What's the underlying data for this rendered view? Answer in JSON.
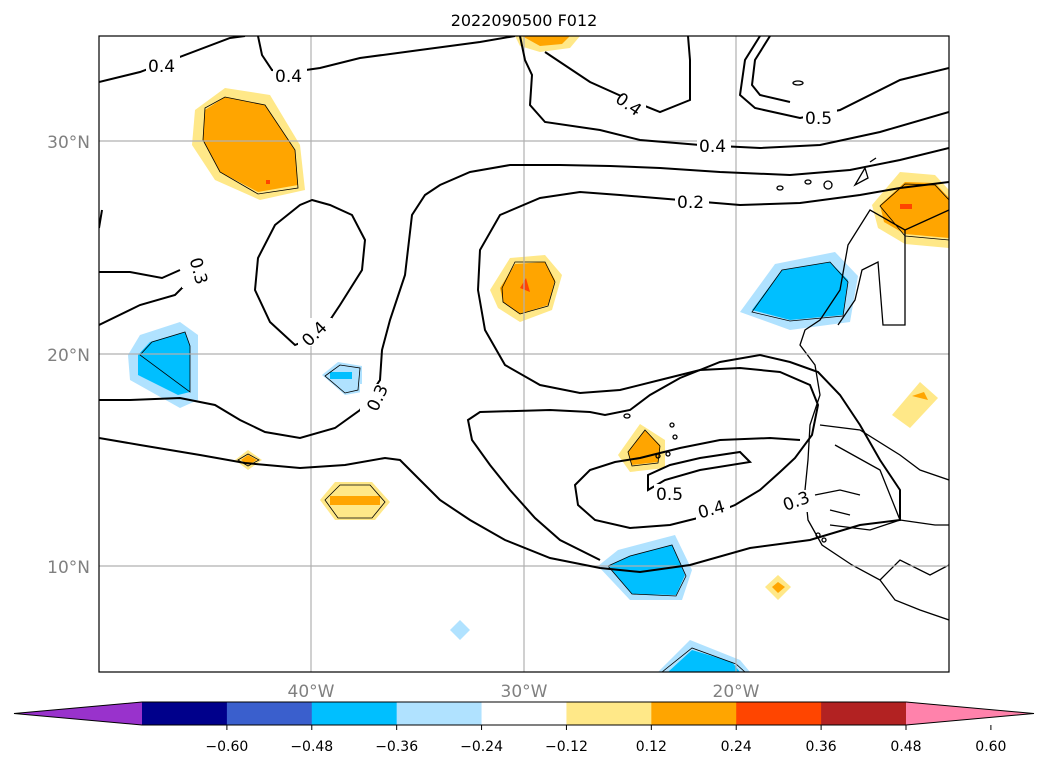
{
  "map": {
    "title": "2022090500 F012",
    "lat_labels": [
      "30°N",
      "20°N",
      "10°N"
    ],
    "lon_labels": [
      "40°W",
      "30°W",
      "20°W"
    ],
    "contour_labels": [
      "0.4",
      "0.4",
      "0.4",
      "0.5",
      "0.4",
      "0.2",
      "0.3",
      "0.4",
      "0.3",
      "0.5",
      "0.4",
      "0.3"
    ],
    "grid": true,
    "extent": {
      "lon": [
        -50,
        -10
      ],
      "lat": [
        5,
        35
      ]
    }
  },
  "colorbar": {
    "ticks": [
      "−0.60",
      "−0.48",
      "−0.36",
      "−0.24",
      "−0.12",
      "0.12",
      "0.24",
      "0.36",
      "0.48",
      "0.60"
    ],
    "colors": [
      "#9932cc",
      "#00008b",
      "#3a5fcd",
      "#00bfff",
      "#b0e2ff",
      "#ffffff",
      "#ffe888",
      "#ffa500",
      "#ff4500",
      "#b22222",
      "#ff82ab"
    ],
    "extend": "both"
  },
  "palette": {
    "shade_colors": {
      "light_yellow": "#ffe888",
      "orange": "#ffa500",
      "red_orange": "#ff4500",
      "deep_sky_blue": "#00bfff",
      "light_blue": "#b0e2ff"
    },
    "grid_color": "#b0b0b0",
    "contour_color": "#000000"
  }
}
